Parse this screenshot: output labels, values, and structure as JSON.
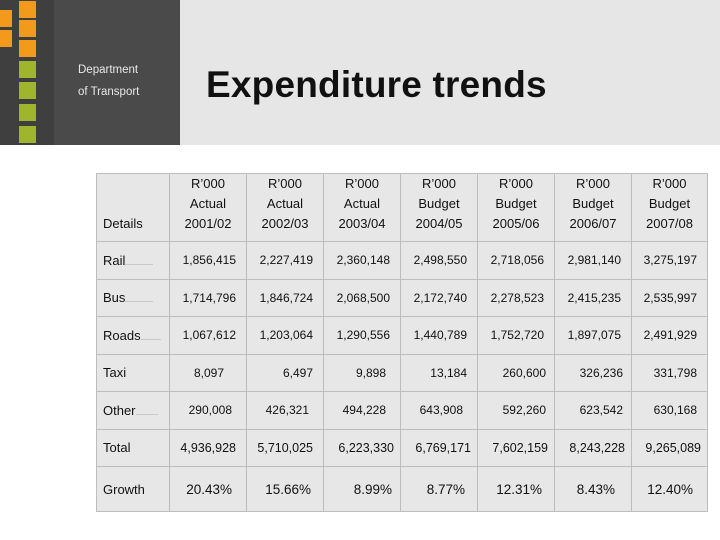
{
  "department": {
    "line1": "Department",
    "line2": "of Transport"
  },
  "title": "Expenditure trends",
  "colors": {
    "orange": "#f39a1c",
    "green": "#9fb52e",
    "dark": "#3f3f3f",
    "title_bg": "#e6e6e6"
  },
  "table": {
    "label_header": "Details",
    "columns": [
      {
        "unit": "R’000",
        "type": "Actual",
        "year": "2001/02"
      },
      {
        "unit": "R’000",
        "type": "Actual",
        "year": "2002/03"
      },
      {
        "unit": "R’000",
        "type": "Actual",
        "year": "2003/04"
      },
      {
        "unit": "R’000",
        "type": "Budget",
        "year": "2004/05"
      },
      {
        "unit": "R’000",
        "type": "Budget",
        "year": "2005/06"
      },
      {
        "unit": "R’000",
        "type": "Budget",
        "year": "2006/07"
      },
      {
        "unit": "R’000",
        "type": "Budget",
        "year": "2007/08"
      }
    ],
    "rows": [
      {
        "label": "Rail",
        "values": [
          "1,856,415",
          "2,227,419",
          "2,360,148",
          "2,498,550",
          "2,718,056",
          "2,981,140",
          "3,275,197"
        ]
      },
      {
        "label": "Bus",
        "values": [
          "1,714,796",
          "1,846,724",
          "2,068,500",
          "2,172,740",
          "2,278,523",
          "2,415,235",
          "2,535,997"
        ]
      },
      {
        "label": "Roads",
        "values": [
          "1,067,612",
          "1,203,064",
          "1,290,556",
          "1,440,789",
          "1,752,720",
          "1,897,075",
          "2,491,929"
        ]
      },
      {
        "label": "Taxi",
        "values": [
          "8,097",
          "6,497",
          "9,898",
          "13,184",
          "260,600",
          "326,236",
          "331,798"
        ]
      },
      {
        "label": "Other",
        "values": [
          "290,008",
          "426,321",
          "494,228",
          "643,908",
          "592,260",
          "623,542",
          "630,168"
        ]
      },
      {
        "label": "Total",
        "values": [
          "4,936,928",
          "5,710,025",
          "6,223,330",
          "6,769,171",
          "7,602,159",
          "8,243,228",
          "9,265,089"
        ]
      },
      {
        "label": "Growth",
        "values": [
          "20.43%",
          "15.66%",
          "8.99%",
          "8.77%",
          "12.31%",
          "8.43%",
          "12.40%"
        ]
      }
    ]
  }
}
